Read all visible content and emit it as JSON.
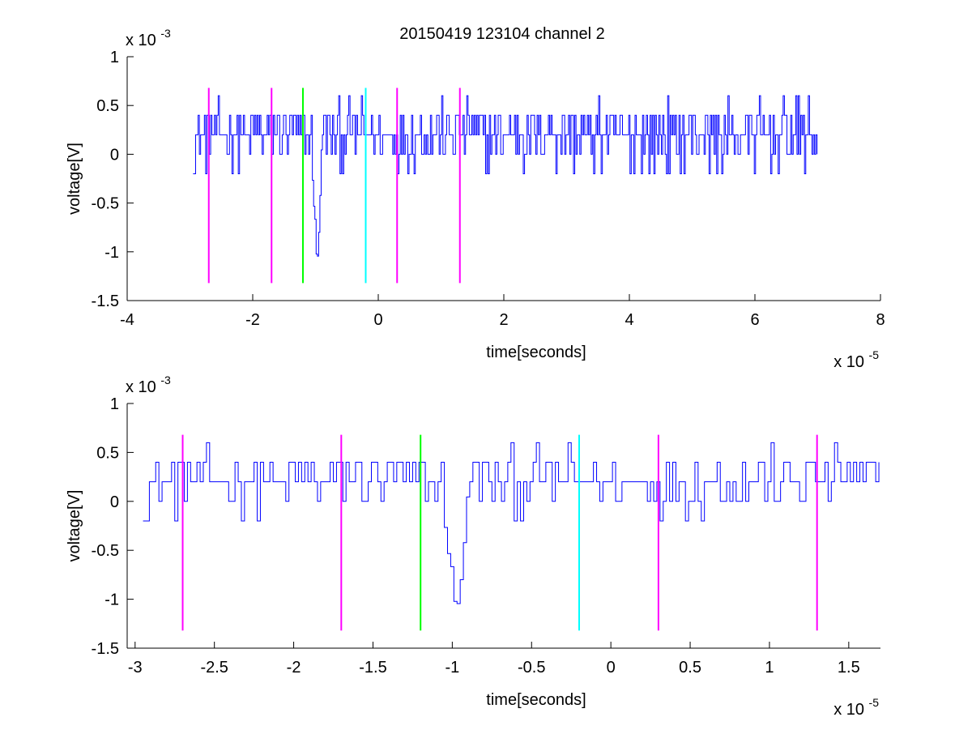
{
  "figure": {
    "title": "20150419 123104 channel 2"
  },
  "colors": {
    "signal": "#0000ff",
    "magenta": "#ff00ff",
    "green": "#00ff00",
    "cyan": "#00ffff",
    "axis": "#000000",
    "background": "#ffffff"
  },
  "chart_data": [
    {
      "type": "line",
      "title": "20150419 123104 channel 2",
      "xlabel": "time[seconds]",
      "ylabel": "voltage[V]",
      "x_multiplier_label": "x 10",
      "x_multiplier_exp": "-5",
      "y_multiplier_label": "x 10",
      "y_multiplier_exp": "-3",
      "xlim": [
        -4,
        8
      ],
      "ylim": [
        -1.5,
        1
      ],
      "xticks": [
        -4,
        -2,
        0,
        2,
        4,
        6,
        8
      ],
      "xtick_labels": [
        "-4",
        "-2",
        "0",
        "2",
        "4",
        "6",
        "8"
      ],
      "yticks": [
        -1.5,
        -1,
        -0.5,
        0,
        0.5,
        1
      ],
      "ytick_labels": [
        "-1.5",
        "-1",
        "-0.5",
        "0",
        "0.5",
        "1"
      ],
      "grid": false,
      "signal_range": [
        -2.95,
        7.0
      ],
      "spike": {
        "x": -0.98,
        "min": -1.2
      },
      "noise_levels": [
        -0.2,
        0.0,
        0.2,
        0.4,
        0.6
      ],
      "markers": [
        {
          "x": -2.7,
          "color": "magenta",
          "ymin": -1.32,
          "ymax": 0.68
        },
        {
          "x": -1.7,
          "color": "magenta",
          "ymin": -1.32,
          "ymax": 0.68
        },
        {
          "x": -1.2,
          "color": "green",
          "ymin": -1.32,
          "ymax": 0.68
        },
        {
          "x": -0.2,
          "color": "cyan",
          "ymin": -1.32,
          "ymax": 0.68
        },
        {
          "x": 0.3,
          "color": "magenta",
          "ymin": -1.32,
          "ymax": 0.68
        },
        {
          "x": 1.3,
          "color": "magenta",
          "ymin": -1.32,
          "ymax": 0.68
        }
      ]
    },
    {
      "type": "line",
      "xlabel": "time[seconds]",
      "ylabel": "voltage[V]",
      "x_multiplier_label": "x 10",
      "x_multiplier_exp": "-5",
      "y_multiplier_label": "x 10",
      "y_multiplier_exp": "-3",
      "xlim": [
        -3.05,
        1.7
      ],
      "ylim": [
        -1.5,
        1
      ],
      "xticks": [
        -3,
        -2.5,
        -2,
        -1.5,
        -1,
        -0.5,
        0,
        0.5,
        1,
        1.5
      ],
      "xtick_labels": [
        "-3",
        "-2.5",
        "-2",
        "-1.5",
        "-1",
        "-0.5",
        "0",
        "0.5",
        "1",
        "1.5"
      ],
      "yticks": [
        -1.5,
        -1,
        -0.5,
        0,
        0.5,
        1
      ],
      "ytick_labels": [
        "-1.5",
        "-1",
        "-0.5",
        "0",
        "0.5",
        "1"
      ],
      "grid": false,
      "signal_range": [
        -2.95,
        1.7
      ],
      "spike": {
        "x": -0.98,
        "min": -1.2
      },
      "noise_levels": [
        -0.2,
        0.0,
        0.2,
        0.4,
        0.6
      ],
      "markers": [
        {
          "x": -2.7,
          "color": "magenta",
          "ymin": -1.32,
          "ymax": 0.68
        },
        {
          "x": -1.7,
          "color": "magenta",
          "ymin": -1.32,
          "ymax": 0.68
        },
        {
          "x": -1.2,
          "color": "green",
          "ymin": -1.32,
          "ymax": 0.68
        },
        {
          "x": -0.2,
          "color": "cyan",
          "ymin": -1.32,
          "ymax": 0.68
        },
        {
          "x": 0.3,
          "color": "magenta",
          "ymin": -1.32,
          "ymax": 0.68
        },
        {
          "x": 1.3,
          "color": "magenta",
          "ymin": -1.32,
          "ymax": 0.68
        }
      ]
    }
  ]
}
